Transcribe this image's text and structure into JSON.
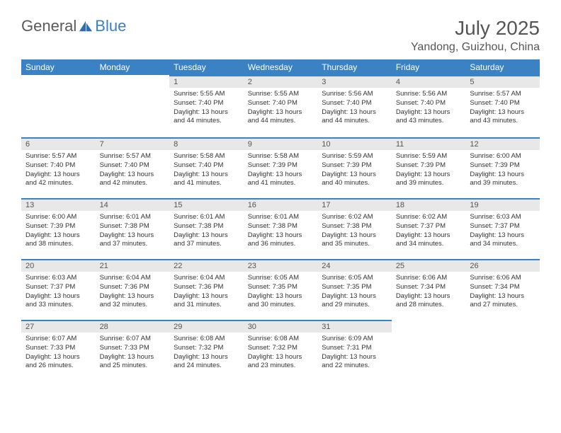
{
  "logo": {
    "prefix": "General",
    "suffix": "Blue"
  },
  "title": "July 2025",
  "location": "Yandong, Guizhou, China",
  "colors": {
    "header_bg": "#3b82c4",
    "header_text": "#ffffff",
    "daynum_bg": "#e8e8e8",
    "daynum_border": "#3b82c4",
    "text": "#333333",
    "title_text": "#555555"
  },
  "weekdays": [
    "Sunday",
    "Monday",
    "Tuesday",
    "Wednesday",
    "Thursday",
    "Friday",
    "Saturday"
  ],
  "weeks": [
    [
      null,
      null,
      {
        "n": "1",
        "sr": "5:55 AM",
        "ss": "7:40 PM",
        "dl": "13 hours and 44 minutes."
      },
      {
        "n": "2",
        "sr": "5:55 AM",
        "ss": "7:40 PM",
        "dl": "13 hours and 44 minutes."
      },
      {
        "n": "3",
        "sr": "5:56 AM",
        "ss": "7:40 PM",
        "dl": "13 hours and 44 minutes."
      },
      {
        "n": "4",
        "sr": "5:56 AM",
        "ss": "7:40 PM",
        "dl": "13 hours and 43 minutes."
      },
      {
        "n": "5",
        "sr": "5:57 AM",
        "ss": "7:40 PM",
        "dl": "13 hours and 43 minutes."
      }
    ],
    [
      {
        "n": "6",
        "sr": "5:57 AM",
        "ss": "7:40 PM",
        "dl": "13 hours and 42 minutes."
      },
      {
        "n": "7",
        "sr": "5:57 AM",
        "ss": "7:40 PM",
        "dl": "13 hours and 42 minutes."
      },
      {
        "n": "8",
        "sr": "5:58 AM",
        "ss": "7:40 PM",
        "dl": "13 hours and 41 minutes."
      },
      {
        "n": "9",
        "sr": "5:58 AM",
        "ss": "7:39 PM",
        "dl": "13 hours and 41 minutes."
      },
      {
        "n": "10",
        "sr": "5:59 AM",
        "ss": "7:39 PM",
        "dl": "13 hours and 40 minutes."
      },
      {
        "n": "11",
        "sr": "5:59 AM",
        "ss": "7:39 PM",
        "dl": "13 hours and 39 minutes."
      },
      {
        "n": "12",
        "sr": "6:00 AM",
        "ss": "7:39 PM",
        "dl": "13 hours and 39 minutes."
      }
    ],
    [
      {
        "n": "13",
        "sr": "6:00 AM",
        "ss": "7:39 PM",
        "dl": "13 hours and 38 minutes."
      },
      {
        "n": "14",
        "sr": "6:01 AM",
        "ss": "7:38 PM",
        "dl": "13 hours and 37 minutes."
      },
      {
        "n": "15",
        "sr": "6:01 AM",
        "ss": "7:38 PM",
        "dl": "13 hours and 37 minutes."
      },
      {
        "n": "16",
        "sr": "6:01 AM",
        "ss": "7:38 PM",
        "dl": "13 hours and 36 minutes."
      },
      {
        "n": "17",
        "sr": "6:02 AM",
        "ss": "7:38 PM",
        "dl": "13 hours and 35 minutes."
      },
      {
        "n": "18",
        "sr": "6:02 AM",
        "ss": "7:37 PM",
        "dl": "13 hours and 34 minutes."
      },
      {
        "n": "19",
        "sr": "6:03 AM",
        "ss": "7:37 PM",
        "dl": "13 hours and 34 minutes."
      }
    ],
    [
      {
        "n": "20",
        "sr": "6:03 AM",
        "ss": "7:37 PM",
        "dl": "13 hours and 33 minutes."
      },
      {
        "n": "21",
        "sr": "6:04 AM",
        "ss": "7:36 PM",
        "dl": "13 hours and 32 minutes."
      },
      {
        "n": "22",
        "sr": "6:04 AM",
        "ss": "7:36 PM",
        "dl": "13 hours and 31 minutes."
      },
      {
        "n": "23",
        "sr": "6:05 AM",
        "ss": "7:35 PM",
        "dl": "13 hours and 30 minutes."
      },
      {
        "n": "24",
        "sr": "6:05 AM",
        "ss": "7:35 PM",
        "dl": "13 hours and 29 minutes."
      },
      {
        "n": "25",
        "sr": "6:06 AM",
        "ss": "7:34 PM",
        "dl": "13 hours and 28 minutes."
      },
      {
        "n": "26",
        "sr": "6:06 AM",
        "ss": "7:34 PM",
        "dl": "13 hours and 27 minutes."
      }
    ],
    [
      {
        "n": "27",
        "sr": "6:07 AM",
        "ss": "7:33 PM",
        "dl": "13 hours and 26 minutes."
      },
      {
        "n": "28",
        "sr": "6:07 AM",
        "ss": "7:33 PM",
        "dl": "13 hours and 25 minutes."
      },
      {
        "n": "29",
        "sr": "6:08 AM",
        "ss": "7:32 PM",
        "dl": "13 hours and 24 minutes."
      },
      {
        "n": "30",
        "sr": "6:08 AM",
        "ss": "7:32 PM",
        "dl": "13 hours and 23 minutes."
      },
      {
        "n": "31",
        "sr": "6:09 AM",
        "ss": "7:31 PM",
        "dl": "13 hours and 22 minutes."
      },
      null,
      null
    ]
  ]
}
